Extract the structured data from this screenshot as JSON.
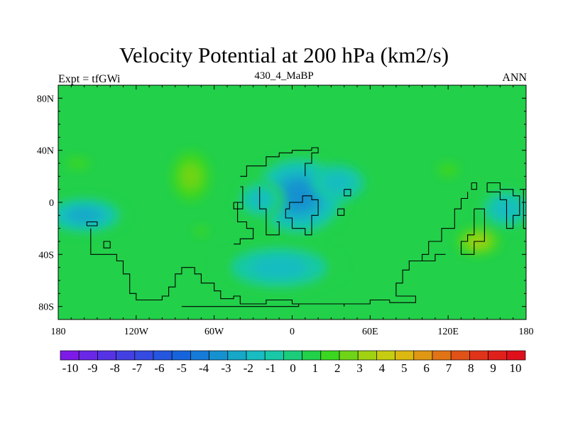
{
  "chart_data": {
    "type": "heatmap",
    "title": "Velocity Potential at 200 hPa (km2/s)",
    "left_label": "Expt = tfGWi",
    "center_label": "430_4_MaBP",
    "right_label": "ANN",
    "x_ticks": [
      {
        "value": -180,
        "label": "180"
      },
      {
        "value": -120,
        "label": "120W"
      },
      {
        "value": -60,
        "label": "60W"
      },
      {
        "value": 0,
        "label": "0"
      },
      {
        "value": 60,
        "label": "60E"
      },
      {
        "value": 120,
        "label": "120E"
      },
      {
        "value": 180,
        "label": "180"
      }
    ],
    "y_ticks": [
      {
        "value": 80,
        "label": "80N"
      },
      {
        "value": 40,
        "label": "40N"
      },
      {
        "value": 0,
        "label": "0"
      },
      {
        "value": -40,
        "label": "40S"
      },
      {
        "value": -80,
        "label": "80S"
      }
    ],
    "xlim": [
      -180,
      180
    ],
    "ylim": [
      -90,
      90
    ],
    "background_value": 1,
    "anomalies": [
      {
        "lon": 5,
        "lat": 5,
        "rx": 45,
        "ry": 38,
        "value": -3.2
      },
      {
        "lon": -25,
        "lat": 2,
        "rx": 25,
        "ry": 20,
        "value": -1.8
      },
      {
        "lon": 35,
        "lat": 15,
        "rx": 30,
        "ry": 20,
        "value": -1.0
      },
      {
        "lon": -160,
        "lat": -10,
        "rx": 40,
        "ry": 18,
        "value": -2.2
      },
      {
        "lon": -10,
        "lat": -50,
        "rx": 65,
        "ry": 25,
        "value": -1.5
      },
      {
        "lon": 165,
        "lat": -5,
        "rx": 30,
        "ry": 22,
        "value": -1.8
      },
      {
        "lon": -78,
        "lat": 20,
        "rx": 22,
        "ry": 28,
        "value": 2.4
      },
      {
        "lon": -70,
        "lat": -22,
        "rx": 12,
        "ry": 8,
        "value": 1.5
      },
      {
        "lon": 143,
        "lat": -30,
        "rx": 22,
        "ry": 14,
        "value": 3.3
      },
      {
        "lon": 120,
        "lat": 25,
        "rx": 18,
        "ry": 12,
        "value": 1.6
      },
      {
        "lon": -165,
        "lat": 30,
        "rx": 20,
        "ry": 10,
        "value": 1.4
      }
    ],
    "colorbar": {
      "levels": [
        -10,
        -9,
        -8,
        -7,
        -6,
        -5,
        -4,
        -3,
        -2,
        -1,
        0,
        1,
        2,
        3,
        4,
        5,
        6,
        7,
        8,
        9,
        10
      ],
      "colors": [
        "#7e1ae8",
        "#6a27e6",
        "#5533e5",
        "#4340e3",
        "#354ae1",
        "#2556df",
        "#1664dc",
        "#167ad8",
        "#1691d0",
        "#16a7c9",
        "#18bcc1",
        "#18c8a6",
        "#1bcc7a",
        "#22d04a",
        "#3bd620",
        "#6fd418",
        "#a0d212",
        "#c6cd10",
        "#dcb911",
        "#e09713",
        "#e07415",
        "#e05217",
        "#e0341a",
        "#e0201b",
        "#e00f1c"
      ]
    }
  }
}
